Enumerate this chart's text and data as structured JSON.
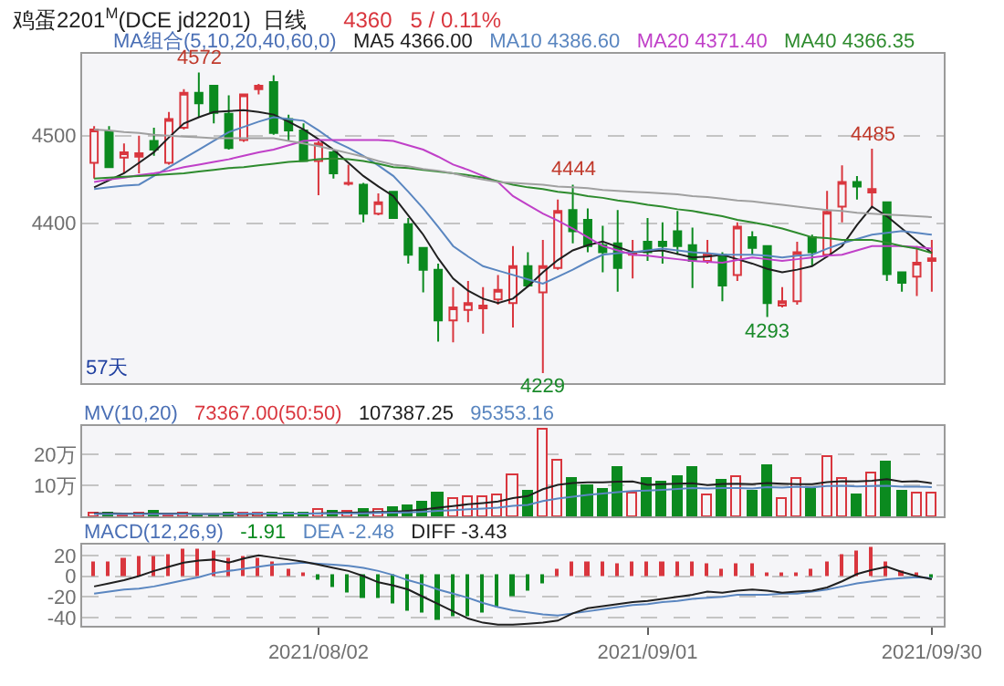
{
  "chart_data": [
    {
      "type": "candlestick",
      "title": "鸡蛋2201$^{M}$(DCE jd2201)  日线",
      "subtitle": "4360   5 / 0.11%",
      "legend_title": "MA组合(5,10,20,40,60,0)",
      "legend": "top",
      "grid": "y",
      "tick_labels": "y",
      "categories": [
        null,
        null,
        null,
        null,
        null,
        null,
        null,
        null,
        null,
        null,
        null,
        null,
        null,
        null,
        null,
        "2021/08/02",
        null,
        null,
        null,
        null,
        null,
        null,
        null,
        null,
        null,
        null,
        null,
        null,
        null,
        null,
        null,
        null,
        null,
        null,
        null,
        null,
        null,
        "2021/09/01",
        null,
        null,
        null,
        null,
        null,
        null,
        null,
        null,
        null,
        null,
        null,
        null,
        null,
        null,
        null,
        null,
        null,
        null,
        "2021/09/30"
      ],
      "ylim": [
        4217,
        4593
      ],
      "yticks": [
        4400,
        4500
      ],
      "ohlc": [
        [
          4469,
          4511,
          4451,
          4507
        ],
        [
          4505,
          4511,
          4463,
          4464
        ],
        [
          4475,
          4491,
          4457,
          4481
        ],
        [
          4476,
          4500,
          4457,
          4480
        ],
        [
          4494,
          4509,
          4477,
          4484
        ],
        [
          4469,
          4527,
          4467,
          4519
        ],
        [
          4509,
          4553,
          4507,
          4549
        ],
        [
          4549,
          4572,
          4521,
          4537
        ],
        [
          4557,
          4557,
          4514,
          4526
        ],
        [
          4525,
          4546,
          4484,
          4486
        ],
        [
          4495,
          4547,
          4493,
          4547
        ],
        [
          4553,
          4559,
          4547,
          4557
        ],
        [
          4561,
          4569,
          4501,
          4503
        ],
        [
          4519,
          4524,
          4494,
          4506
        ],
        [
          4506,
          4514,
          4471,
          4471
        ],
        [
          4471,
          4494,
          4432,
          4491
        ],
        [
          4481,
          4484,
          4451,
          4457
        ],
        [
          4445,
          4467,
          4443,
          4446
        ],
        [
          4444,
          4446,
          4401,
          4411
        ],
        [
          4411,
          4434,
          4409,
          4424
        ],
        [
          4436,
          4436,
          4405,
          4406
        ],
        [
          4399,
          4406,
          4354,
          4364
        ],
        [
          4372,
          4372,
          4321,
          4347
        ],
        [
          4347,
          4354,
          4265,
          4289
        ],
        [
          4289,
          4327,
          4264,
          4304
        ],
        [
          4301,
          4334,
          4287,
          4309
        ],
        [
          4303,
          4327,
          4274,
          4306
        ],
        [
          4313,
          4341,
          4307,
          4324
        ],
        [
          4309,
          4374,
          4281,
          4351
        ],
        [
          4351,
          4367,
          4327,
          4329
        ],
        [
          4321,
          4381,
          4229,
          4351
        ],
        [
          4349,
          4427,
          4347,
          4414
        ],
        [
          4415,
          4444,
          4377,
          4391
        ],
        [
          4404,
          4417,
          4367,
          4374
        ],
        [
          4375,
          4397,
          4344,
          4367
        ],
        [
          4377,
          4415,
          4322,
          4349
        ],
        [
          4364,
          4381,
          4337,
          4367
        ],
        [
          4379,
          4406,
          4357,
          4367
        ],
        [
          4379,
          4401,
          4354,
          4374
        ],
        [
          4391,
          4414,
          4364,
          4374
        ],
        [
          4375,
          4395,
          4326,
          4357
        ],
        [
          4357,
          4381,
          4354,
          4365
        ],
        [
          4364,
          4367,
          4311,
          4329
        ],
        [
          4341,
          4401,
          4334,
          4396
        ],
        [
          4384,
          4391,
          4364,
          4372
        ],
        [
          4374,
          4374,
          4293,
          4309
        ],
        [
          4306,
          4327,
          4304,
          4311
        ],
        [
          4311,
          4379,
          4307,
          4367
        ],
        [
          4384,
          4387,
          4351,
          4367
        ],
        [
          4364,
          4437,
          4361,
          4413
        ],
        [
          4419,
          4466,
          4401,
          4447
        ],
        [
          4447,
          4454,
          4427,
          4442
        ],
        [
          4435,
          4485,
          4417,
          4439
        ],
        [
          4424,
          4424,
          4334,
          4342
        ],
        [
          4344,
          4344,
          4322,
          4332
        ],
        [
          4339,
          4374,
          4317,
          4355
        ],
        [
          4357,
          4381,
          4322,
          4360
        ]
      ],
      "series": [
        {
          "type": "line",
          "name": "MA5 4366.00",
          "color": "#202020",
          "values": [
            4441,
            4449,
            4457,
            4469,
            4481,
            4498,
            4514,
            4521,
            4527,
            4528,
            4529,
            4527,
            4524,
            4516,
            4507,
            4496,
            4484,
            4469,
            4454,
            4442,
            4431,
            4409,
            4387,
            4360,
            4337,
            4323,
            4314,
            4309,
            4314,
            4328,
            4344,
            4358,
            4369,
            4375,
            4379,
            4373,
            4367,
            4368,
            4369,
            4365,
            4361,
            4362,
            4364,
            4359,
            4354,
            4348,
            4344,
            4347,
            4351,
            4362,
            4374,
            4398,
            4419,
            4408,
            4394,
            4380,
            4366
          ]
        },
        {
          "type": "line",
          "name": "MA10 4386.60",
          "color": "#5a86c0",
          "values": [
            4439,
            4441,
            4443,
            4444,
            4454,
            4464,
            4474,
            4484,
            4494,
            4504,
            4510,
            4516,
            4521,
            4519,
            4517,
            4506,
            4494,
            4486,
            4477,
            4466,
            4454,
            4436,
            4417,
            4396,
            4374,
            4362,
            4351,
            4346,
            4341,
            4336,
            4331,
            4339,
            4347,
            4356,
            4364,
            4366,
            4367,
            4369,
            4371,
            4369,
            4367,
            4366,
            4364,
            4364,
            4364,
            4363,
            4361,
            4363,
            4364,
            4371,
            4377,
            4382,
            4387,
            4389,
            4391,
            4389,
            4387
          ]
        },
        {
          "type": "line",
          "name": "MA20 4371.40",
          "color": "#c040c8",
          "values": [
            4447,
            4450,
            4452,
            4455,
            4457,
            4460,
            4464,
            4467,
            4470,
            4473,
            4477,
            4481,
            4484,
            4489,
            4494,
            4495,
            4495,
            4495,
            4495,
            4495,
            4494,
            4489,
            4484,
            4476,
            4467,
            4461,
            4454,
            4447,
            4431,
            4421,
            4411,
            4403,
            4394,
            4384,
            4374,
            4369,
            4364,
            4363,
            4361,
            4359,
            4357,
            4356,
            4355,
            4358,
            4361,
            4359,
            4357,
            4359,
            4361,
            4363,
            4364,
            4369,
            4374,
            4374,
            4374,
            4373,
            4371
          ]
        },
        {
          "type": "line",
          "name": "MA40 4366.35",
          "color": "#2e8b2e",
          "values": [
            4451,
            4452,
            4453,
            4454,
            4455,
            4456,
            4457,
            4459,
            4461,
            4463,
            4464,
            4466,
            4468,
            4470,
            4471,
            4473,
            4474,
            4473,
            4471,
            4468,
            4464,
            4463,
            4461,
            4459,
            4457,
            4455,
            4452,
            4448,
            4444,
            4441,
            4439,
            4436,
            4434,
            4431,
            4429,
            4426,
            4424,
            4421,
            4419,
            4416,
            4414,
            4411,
            4408,
            4404,
            4401,
            4398,
            4394,
            4389,
            4384,
            4383,
            4381,
            4381,
            4381,
            4378,
            4374,
            4371,
            4366
          ]
        },
        {
          "type": "line",
          "color": "#a0a0a0",
          "values": [
            4507,
            4506,
            4504,
            4503,
            4501,
            4500,
            4499,
            4498,
            4497,
            4497,
            4497,
            4497,
            4497,
            4494,
            4491,
            4488,
            4484,
            4480,
            4476,
            4471,
            4467,
            4465,
            4462,
            4460,
            4457,
            4453,
            4450,
            4447,
            4446,
            4445,
            4444,
            4442,
            4441,
            4440,
            4438,
            4437,
            4436,
            4435,
            4434,
            4433,
            4431,
            4430,
            4428,
            4426,
            4425,
            4423,
            4421,
            4419,
            4417,
            4415,
            4414,
            4412,
            4411,
            4410,
            4409,
            4408,
            4407
          ]
        }
      ],
      "annotations": [
        "57天",
        {
          "text": "4572",
          "y": 4572
        },
        {
          "text": "4229",
          "y": 4229
        },
        {
          "text": "4444",
          "y": 4444
        },
        {
          "text": "4293",
          "y": 4293
        },
        {
          "text": "4485",
          "y": 4485
        }
      ]
    },
    {
      "type": "bar",
      "legend_title": "MV(10,20)",
      "legend": "top left",
      "grid": "y",
      "tick_labels": "y",
      "categories": [
        null,
        null,
        null,
        null,
        null,
        null,
        null,
        null,
        null,
        null,
        null,
        null,
        null,
        null,
        null,
        "2021/08/02",
        null,
        null,
        null,
        null,
        null,
        null,
        null,
        null,
        null,
        null,
        null,
        null,
        null,
        null,
        null,
        null,
        null,
        null,
        null,
        null,
        null,
        "2021/09/01",
        null,
        null,
        null,
        null,
        null,
        null,
        null,
        null,
        null,
        null,
        null,
        null,
        null,
        null,
        null,
        null,
        null,
        null,
        "2021/09/30"
      ],
      "ylim": [
        0,
        29
      ],
      "yticks": [
        {
          "value": 10,
          "label": "10万"
        },
        {
          "value": 20,
          "label": "20万"
        }
      ],
      "series": [
        {
          "type": "bar",
          "name": "73367.00(50:50)",
          "values": [
            1.0,
            1.3,
            0.5,
            0.8,
            1.8,
            0.6,
            0.8,
            0.6,
            0.7,
            1.0,
            0.8,
            1.0,
            1.3,
            1.2,
            1.0,
            2.0,
            1.5,
            1.5,
            2.3,
            2.0,
            2.5,
            3.5,
            4.5,
            7.7,
            5.4,
            6.0,
            6.0,
            7.0,
            13.5,
            8.3,
            28.0,
            18.0,
            12.3,
            9.6,
            8.5,
            15.5,
            7.7,
            12.0,
            11.0,
            12.8,
            15.5,
            7.0,
            11.5,
            12.8,
            8.0,
            16.0,
            5.8,
            12.3,
            8.5,
            19.0,
            12.3,
            7.0,
            14.0,
            17.5,
            7.8,
            7.5,
            7.3
          ],
          "colors": [
            "#d9363e",
            "#0b8a1f",
            "#d9363e",
            "#d9363e",
            "#0b8a1f",
            "#d9363e",
            "#d9363e",
            "#0b8a1f",
            "#0b8a1f",
            "#0b8a1f",
            "#d9363e",
            "#d9363e",
            "#0b8a1f",
            "#0b8a1f",
            "#0b8a1f",
            "#d9363e",
            "#0b8a1f",
            "#d9363e",
            "#0b8a1f",
            "#d9363e",
            "#0b8a1f",
            "#0b8a1f",
            "#0b8a1f",
            "#0b8a1f",
            "#d9363e",
            "#d9363e",
            "#d9363e",
            "#d9363e",
            "#d9363e",
            "#0b8a1f",
            "#d9363e",
            "#d9363e",
            "#0b8a1f",
            "#0b8a1f",
            "#0b8a1f",
            "#0b8a1f",
            "#d9363e",
            "#0b8a1f",
            "#0b8a1f",
            "#0b8a1f",
            "#0b8a1f",
            "#d9363e",
            "#0b8a1f",
            "#d9363e",
            "#0b8a1f",
            "#0b8a1f",
            "#d9363e",
            "#d9363e",
            "#0b8a1f",
            "#d9363e",
            "#d9363e",
            "#0b8a1f",
            "#d9363e",
            "#0b8a1f",
            "#0b8a1f",
            "#d9363e",
            "#d9363e"
          ]
        },
        {
          "type": "line",
          "name": "107387.25",
          "color": "#202020",
          "values": [
            1.1,
            1.1,
            1.0,
            1.0,
            1.0,
            1.0,
            1.0,
            0.9,
            0.9,
            0.9,
            0.9,
            0.9,
            1.0,
            1.0,
            1.0,
            1.1,
            1.2,
            1.3,
            1.4,
            1.5,
            1.6,
            1.9,
            2.3,
            2.9,
            3.4,
            4.0,
            4.4,
            4.9,
            6.0,
            6.6,
            8.8,
            10.2,
            10.8,
            11.0,
            11.0,
            11.2,
            11.3,
            10.2,
            10.4,
            10.6,
            10.7,
            10.1,
            10.5,
            10.6,
            10.4,
            10.8,
            10.6,
            10.4,
            10.4,
            11.1,
            11.4,
            11.3,
            11.5,
            12.0,
            11.2,
            11.4,
            10.7
          ]
        },
        {
          "type": "line",
          "name": "95353.16",
          "color": "#5a86c0",
          "values": [
            0.9,
            0.9,
            0.9,
            0.9,
            0.9,
            0.9,
            0.9,
            0.9,
            0.9,
            0.9,
            1.0,
            1.0,
            1.0,
            1.0,
            1.0,
            1.0,
            1.1,
            1.1,
            1.1,
            1.2,
            1.3,
            1.4,
            1.6,
            1.9,
            2.1,
            2.4,
            2.6,
            2.9,
            3.5,
            3.8,
            5.0,
            5.8,
            6.4,
            7.0,
            7.4,
            7.9,
            8.2,
            8.4,
            8.6,
            8.9,
            9.2,
            9.0,
            9.2,
            9.2,
            9.0,
            9.5,
            9.3,
            9.6,
            9.4,
            9.8,
            9.9,
            9.7,
            9.8,
            9.9,
            9.6,
            9.6,
            9.5
          ]
        }
      ]
    },
    {
      "type": "bar",
      "legend_title": "MACD(12,26,9)",
      "legend": "top left",
      "grid": "y",
      "categories": [
        null,
        null,
        null,
        null,
        null,
        null,
        null,
        null,
        null,
        null,
        null,
        null,
        null,
        null,
        null,
        "2021/08/02",
        null,
        null,
        null,
        null,
        null,
        null,
        null,
        null,
        null,
        null,
        null,
        null,
        null,
        null,
        null,
        null,
        null,
        null,
        null,
        null,
        null,
        "2021/09/01",
        null,
        null,
        null,
        null,
        null,
        null,
        null,
        null,
        null,
        null,
        null,
        null,
        null,
        null,
        null,
        null,
        null,
        null,
        "2021/09/30"
      ],
      "ylim": [
        -48,
        30
      ],
      "yticks": [
        -40,
        -20,
        0,
        20
      ],
      "series": [
        {
          "type": "bar",
          "name": "-1.91",
          "values": [
            13,
            13,
            16,
            18,
            18,
            20,
            25,
            25,
            23,
            16,
            18,
            16,
            12,
            6,
            2,
            -4,
            -11,
            -15,
            -21,
            -21,
            -26,
            -33,
            -35,
            -43,
            -39,
            -39,
            -35,
            -30,
            -20,
            -14,
            -7,
            6,
            13,
            13,
            13,
            11,
            13,
            13,
            13,
            13,
            13,
            11,
            5,
            10,
            10,
            2,
            1,
            2,
            5,
            13,
            20,
            23,
            26,
            12,
            3,
            2,
            -2
          ],
          "colors": [
            "#d9363e",
            "#d9363e",
            "#d9363e",
            "#d9363e",
            "#d9363e",
            "#d9363e",
            "#d9363e",
            "#d9363e",
            "#d9363e",
            "#d9363e",
            "#d9363e",
            "#d9363e",
            "#d9363e",
            "#d9363e",
            "#d9363e",
            "#0b8a1f",
            "#0b8a1f",
            "#0b8a1f",
            "#0b8a1f",
            "#0b8a1f",
            "#0b8a1f",
            "#0b8a1f",
            "#0b8a1f",
            "#0b8a1f",
            "#0b8a1f",
            "#0b8a1f",
            "#0b8a1f",
            "#0b8a1f",
            "#0b8a1f",
            "#0b8a1f",
            "#0b8a1f",
            "#d9363e",
            "#d9363e",
            "#d9363e",
            "#d9363e",
            "#d9363e",
            "#d9363e",
            "#d9363e",
            "#d9363e",
            "#d9363e",
            "#d9363e",
            "#d9363e",
            "#d9363e",
            "#d9363e",
            "#d9363e",
            "#d9363e",
            "#d9363e",
            "#d9363e",
            "#d9363e",
            "#d9363e",
            "#d9363e",
            "#d9363e",
            "#d9363e",
            "#d9363e",
            "#d9363e",
            "#d9363e",
            "#0b8a1f"
          ]
        },
        {
          "type": "line",
          "name": "DEA -2.48",
          "color": "#5a86c0",
          "values": [
            -17,
            -15,
            -13,
            -12,
            -10,
            -7,
            -4,
            -1,
            3,
            5,
            7,
            9,
            11,
            12,
            13,
            12,
            11,
            10,
            8,
            5,
            1,
            -4,
            -8,
            -13,
            -17,
            -21,
            -26,
            -30,
            -33,
            -35,
            -37,
            -38,
            -36,
            -34,
            -32,
            -30,
            -28,
            -27,
            -25,
            -24,
            -22,
            -21,
            -20,
            -18,
            -18,
            -18,
            -17,
            -17,
            -15,
            -13,
            -10,
            -7,
            -5,
            -3,
            -2,
            -1,
            -2
          ]
        },
        {
          "type": "line",
          "name": "DIFF -3.43",
          "color": "#202020",
          "values": [
            -10,
            -7,
            -4,
            0,
            5,
            9,
            13,
            15,
            16,
            13,
            17,
            20,
            18,
            16,
            14,
            11,
            8,
            5,
            0,
            -6,
            -9,
            -13,
            -20,
            -27,
            -34,
            -41,
            -45,
            -47,
            -47,
            -46,
            -45,
            -43,
            -36,
            -31,
            -29,
            -27,
            -25,
            -24,
            -22,
            -20,
            -18,
            -15,
            -16,
            -14,
            -13,
            -14,
            -16,
            -15,
            -14,
            -11,
            -5,
            2,
            6,
            9,
            4,
            0,
            -3
          ]
        }
      ]
    }
  ]
}
